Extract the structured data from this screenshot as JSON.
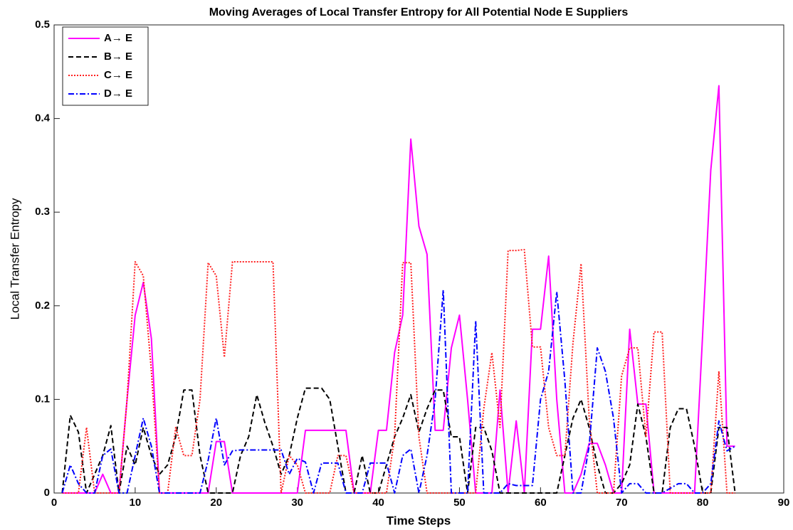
{
  "chart_data": {
    "type": "line",
    "title": "Moving Averages of Local Transfer Entropy for All Potential Node E Suppliers",
    "x_label": "Time Steps",
    "y_label": "Local Transfer Entropy",
    "x": [
      1,
      2,
      3,
      4,
      5,
      6,
      7,
      8,
      9,
      10,
      11,
      12,
      13,
      14,
      15,
      16,
      17,
      18,
      19,
      20,
      21,
      22,
      23,
      24,
      25,
      26,
      27,
      28,
      29,
      30,
      31,
      32,
      33,
      34,
      35,
      36,
      37,
      38,
      39,
      40,
      41,
      42,
      43,
      44,
      45,
      46,
      47,
      48,
      49,
      50,
      51,
      52,
      53,
      54,
      55,
      56,
      57,
      58,
      59,
      60,
      61,
      62,
      63,
      64,
      65,
      66,
      67,
      68,
      69,
      70,
      71,
      72,
      73,
      74,
      75,
      76,
      77,
      78,
      79,
      80,
      81,
      82,
      83,
      84
    ],
    "xlim": [
      0,
      90
    ],
    "xticks": [
      0,
      10,
      20,
      30,
      40,
      50,
      60,
      70,
      80,
      90
    ],
    "ylim": [
      0,
      0.5
    ],
    "yticks": [
      0,
      0.1,
      0.2,
      0.3,
      0.4,
      0.5
    ],
    "legend_position": "upper left",
    "series": [
      {
        "name": "A→ E",
        "color": "#ff00ff",
        "style": "solid",
        "values": [
          0,
          0,
          0,
          0,
          0,
          0.02,
          0,
          0,
          0.1,
          0.19,
          0.225,
          0.165,
          0,
          0,
          0,
          0,
          0,
          0,
          0,
          0.055,
          0.055,
          0,
          0,
          0,
          0,
          0,
          0,
          0,
          0,
          0,
          0.067,
          0.067,
          0.067,
          0.067,
          0.067,
          0.067,
          0,
          0,
          0,
          0.067,
          0.067,
          0.15,
          0.19,
          0.378,
          0.285,
          0.255,
          0.067,
          0.067,
          0.155,
          0.19,
          0.1,
          0,
          0,
          0,
          0.11,
          0,
          0.077,
          0,
          0.175,
          0.175,
          0.253,
          0.1,
          0,
          0,
          0.02,
          0.053,
          0.053,
          0.03,
          0,
          0,
          0.175,
          0.095,
          0.095,
          0,
          0,
          0,
          0,
          0,
          0,
          0.17,
          0.345,
          0.435,
          0.05,
          0.05
        ]
      },
      {
        "name": "B→ E",
        "color": "#000000",
        "style": "dashed",
        "values": [
          0,
          0.083,
          0.065,
          0,
          0.02,
          0.04,
          0.072,
          0,
          0.05,
          0.03,
          0.07,
          0.04,
          0.02,
          0.03,
          0.06,
          0.11,
          0.11,
          0.04,
          0,
          0,
          0,
          0,
          0.04,
          0.06,
          0.105,
          0.075,
          0.05,
          0.02,
          0.04,
          0.08,
          0.112,
          0.112,
          0.112,
          0.1,
          0.05,
          0,
          0,
          0.04,
          0,
          0,
          0.03,
          0.06,
          0.08,
          0.105,
          0.065,
          0.09,
          0.11,
          0.11,
          0.06,
          0.06,
          0,
          0.07,
          0.07,
          0.045,
          0,
          0,
          0,
          0,
          0,
          0,
          0,
          0,
          0.04,
          0.08,
          0.1,
          0.07,
          0.03,
          0,
          0,
          0.01,
          0.03,
          0.095,
          0.06,
          0,
          0,
          0.07,
          0.09,
          0.09,
          0.05,
          0,
          0,
          0.07,
          0.07,
          0
        ]
      },
      {
        "name": "C→ E",
        "color": "#ff2020",
        "style": "dotted",
        "values": [
          0,
          0,
          0,
          0.07,
          0,
          0,
          0,
          0,
          0.1,
          0.247,
          0.232,
          0.13,
          0,
          0,
          0.07,
          0.04,
          0.04,
          0.1,
          0.246,
          0.232,
          0.145,
          0.247,
          0.247,
          0.247,
          0.247,
          0.247,
          0.247,
          0,
          0.04,
          0.03,
          0,
          0,
          0,
          0,
          0.04,
          0.04,
          0,
          0,
          0,
          0,
          0,
          0.06,
          0.246,
          0.246,
          0.06,
          0,
          0,
          0,
          0,
          0,
          0,
          0,
          0.09,
          0.15,
          0.07,
          0.259,
          0.259,
          0.26,
          0.156,
          0.156,
          0.07,
          0.04,
          0.04,
          0.16,
          0.245,
          0.08,
          0,
          0,
          0,
          0.125,
          0.155,
          0.155,
          0.06,
          0.172,
          0.172,
          0,
          0,
          0,
          0,
          0,
          0,
          0.13,
          0,
          0
        ]
      },
      {
        "name": "D→ E",
        "color": "#0000ff",
        "style": "dashdot",
        "values": [
          0,
          0.03,
          0.01,
          0,
          0,
          0.04,
          0.047,
          0,
          0,
          0.04,
          0.08,
          0.05,
          0,
          0,
          0,
          0,
          0,
          0,
          0.035,
          0.08,
          0.03,
          0.045,
          0.046,
          0.046,
          0.046,
          0.046,
          0.046,
          0.046,
          0.02,
          0.037,
          0.033,
          0,
          0.032,
          0.032,
          0.032,
          0,
          0,
          0,
          0.032,
          0.032,
          0.032,
          0,
          0.04,
          0.047,
          0,
          0.04,
          0.1,
          0.217,
          0,
          0,
          0,
          0.184,
          0,
          0,
          0,
          0.01,
          0.008,
          0.008,
          0.008,
          0.1,
          0.13,
          0.215,
          0.12,
          0,
          0,
          0.05,
          0.155,
          0.13,
          0.08,
          0,
          0.01,
          0.01,
          0,
          0,
          0,
          0.005,
          0.01,
          0.01,
          0,
          0,
          0.01,
          0.077,
          0.045,
          0.05
        ]
      }
    ]
  }
}
